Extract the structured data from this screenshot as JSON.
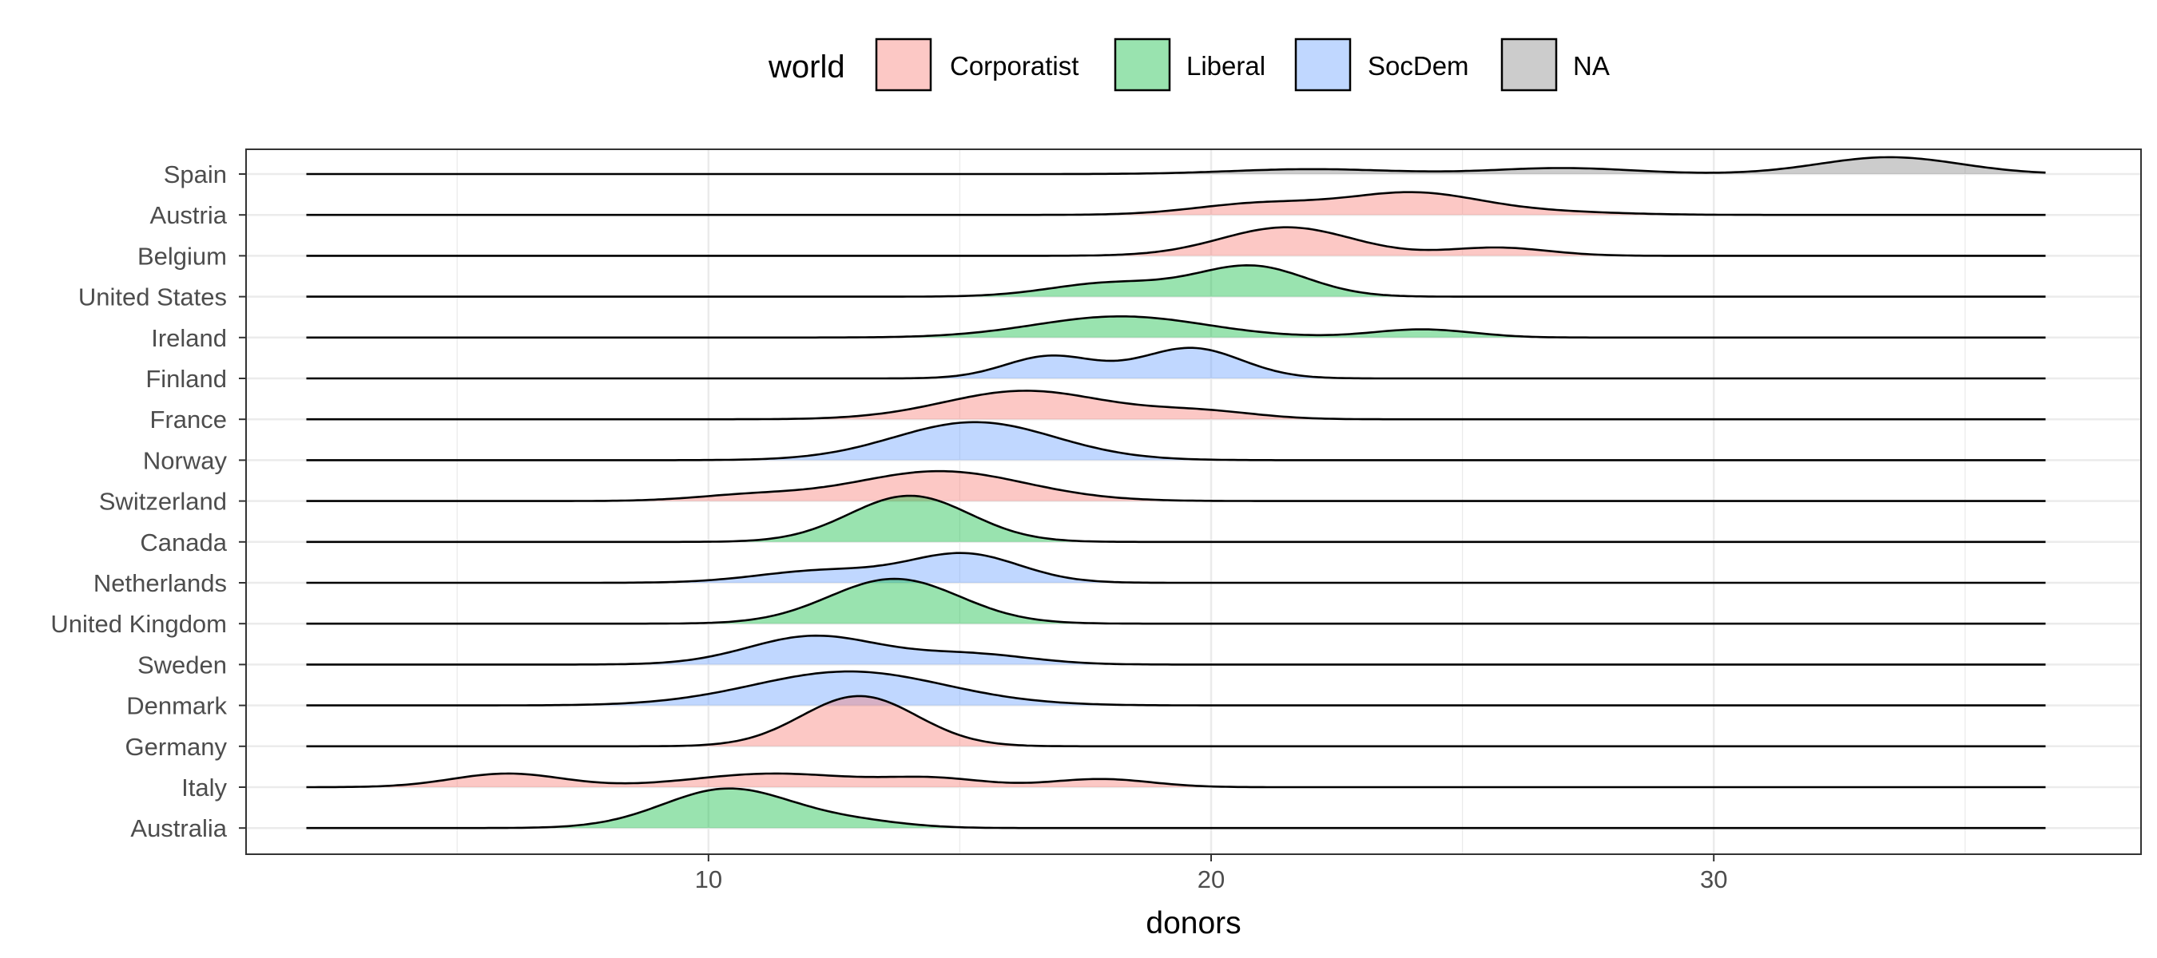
{
  "chart_data": {
    "type": "ridgeline",
    "title": "",
    "xlabel": "donors",
    "ylabel": "",
    "xlim": [
      0.8,
      38.5
    ],
    "density_range": [
      2.0,
      36.6
    ],
    "xticks": [
      10,
      20,
      30
    ],
    "grid": true,
    "legend": {
      "title": "world",
      "position": "top",
      "entries": [
        {
          "name": "Corporatist",
          "color": "#f8766d"
        },
        {
          "name": "Liberal",
          "color": "#00ba38"
        },
        {
          "name": "SocDem",
          "color": "#619cff"
        },
        {
          "name": "NA",
          "color": "#808080"
        }
      ]
    },
    "categories": [
      "Spain",
      "Austria",
      "Belgium",
      "United States",
      "Ireland",
      "Finland",
      "France",
      "Norway",
      "Switzerland",
      "Canada",
      "Netherlands",
      "United Kingdom",
      "Sweden",
      "Denmark",
      "Germany",
      "Italy",
      "Australia"
    ],
    "series": [
      {
        "country": "Spain",
        "world": "NA",
        "peaks": [
          {
            "x": 22.0,
            "h": 0.18,
            "sd": 1.6
          },
          {
            "x": 27.0,
            "h": 0.22,
            "sd": 1.4
          },
          {
            "x": 33.5,
            "h": 0.62,
            "sd": 1.4
          }
        ]
      },
      {
        "country": "Austria",
        "world": "Corporatist",
        "peaks": [
          {
            "x": 21.0,
            "h": 0.42,
            "sd": 1.3
          },
          {
            "x": 24.0,
            "h": 0.78,
            "sd": 1.3
          },
          {
            "x": 26.5,
            "h": 0.12,
            "sd": 1.5
          }
        ]
      },
      {
        "country": "Belgium",
        "world": "Corporatist",
        "peaks": [
          {
            "x": 21.5,
            "h": 1.05,
            "sd": 1.3
          },
          {
            "x": 25.7,
            "h": 0.3,
            "sd": 1.0
          }
        ]
      },
      {
        "country": "United States",
        "world": "Liberal",
        "peaks": [
          {
            "x": 18.0,
            "h": 0.5,
            "sd": 1.2
          },
          {
            "x": 20.8,
            "h": 1.12,
            "sd": 1.1
          }
        ]
      },
      {
        "country": "Ireland",
        "world": "Liberal",
        "peaks": [
          {
            "x": 18.2,
            "h": 0.78,
            "sd": 1.7
          },
          {
            "x": 24.2,
            "h": 0.3,
            "sd": 1.0
          }
        ]
      },
      {
        "country": "Finland",
        "world": "SocDem",
        "peaks": [
          {
            "x": 16.8,
            "h": 0.82,
            "sd": 0.9
          },
          {
            "x": 19.6,
            "h": 1.12,
            "sd": 1.0
          }
        ]
      },
      {
        "country": "France",
        "world": "Corporatist",
        "peaks": [
          {
            "x": 16.3,
            "h": 1.05,
            "sd": 1.6
          },
          {
            "x": 19.8,
            "h": 0.28,
            "sd": 1.1
          }
        ]
      },
      {
        "country": "Norway",
        "world": "SocDem",
        "peaks": [
          {
            "x": 15.3,
            "h": 1.4,
            "sd": 1.6
          }
        ]
      },
      {
        "country": "Switzerland",
        "world": "Corporatist",
        "peaks": [
          {
            "x": 10.8,
            "h": 0.2,
            "sd": 1.1
          },
          {
            "x": 14.6,
            "h": 1.1,
            "sd": 1.7
          }
        ]
      },
      {
        "country": "Canada",
        "world": "Liberal",
        "peaks": [
          {
            "x": 14.0,
            "h": 1.7,
            "sd": 1.2
          }
        ]
      },
      {
        "country": "Netherlands",
        "world": "SocDem",
        "peaks": [
          {
            "x": 12.3,
            "h": 0.45,
            "sd": 1.3
          },
          {
            "x": 15.1,
            "h": 1.05,
            "sd": 1.1
          }
        ]
      },
      {
        "country": "United Kingdom",
        "world": "Liberal",
        "peaks": [
          {
            "x": 13.7,
            "h": 1.65,
            "sd": 1.3
          }
        ]
      },
      {
        "country": "Sweden",
        "world": "SocDem",
        "peaks": [
          {
            "x": 12.1,
            "h": 1.05,
            "sd": 1.3
          },
          {
            "x": 15.2,
            "h": 0.38,
            "sd": 1.2
          }
        ]
      },
      {
        "country": "Denmark",
        "world": "SocDem",
        "peaks": [
          {
            "x": 12.8,
            "h": 1.25,
            "sd": 1.9
          }
        ]
      },
      {
        "country": "Germany",
        "world": "Corporatist",
        "peaks": [
          {
            "x": 13.0,
            "h": 1.85,
            "sd": 1.15
          }
        ]
      },
      {
        "country": "Italy",
        "world": "Corporatist",
        "peaks": [
          {
            "x": 6.0,
            "h": 0.5,
            "sd": 1.1
          },
          {
            "x": 11.3,
            "h": 0.5,
            "sd": 1.6
          },
          {
            "x": 14.5,
            "h": 0.3,
            "sd": 1.0
          },
          {
            "x": 17.8,
            "h": 0.3,
            "sd": 1.0
          }
        ]
      },
      {
        "country": "Australia",
        "world": "Liberal",
        "peaks": [
          {
            "x": 10.4,
            "h": 1.45,
            "sd": 1.3
          },
          {
            "x": 13.0,
            "h": 0.2,
            "sd": 1.0
          }
        ]
      }
    ]
  }
}
